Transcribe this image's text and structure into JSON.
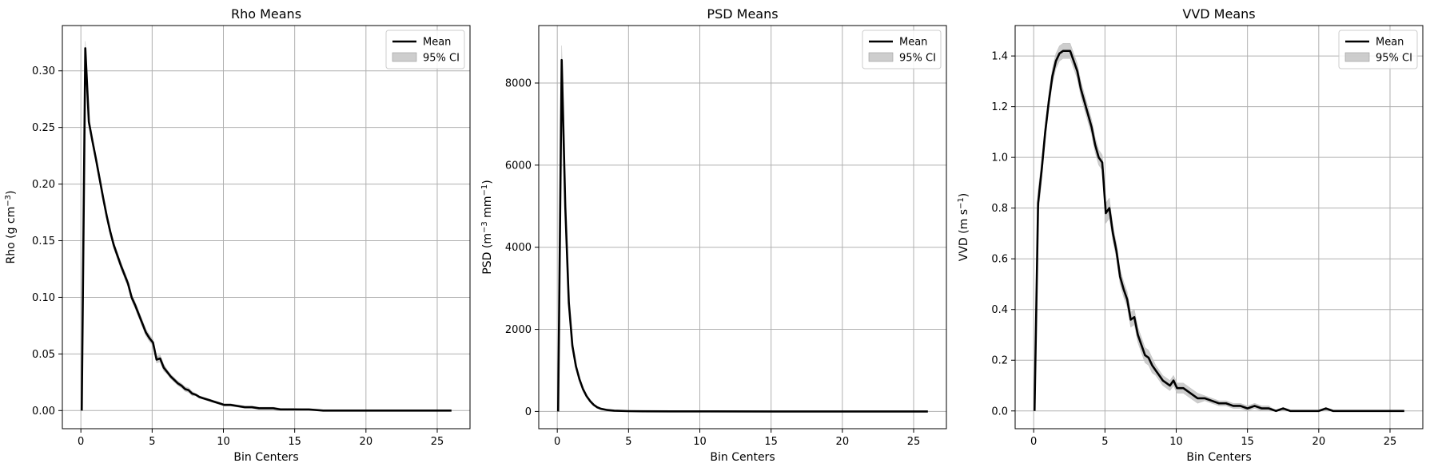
{
  "chart_data": [
    {
      "type": "line",
      "title": "Rho Means",
      "xlabel": "Bin Centers",
      "ylabel_parts": [
        "Rho (g cm",
        "−3",
        ")"
      ],
      "xlim": [
        -1.3,
        27.3
      ],
      "ylim": [
        -0.016,
        0.34
      ],
      "xticks": [
        0,
        5,
        10,
        15,
        20,
        25
      ],
      "xtick_labels": [
        "0",
        "5",
        "10",
        "15",
        "20",
        "25"
      ],
      "yticks": [
        0.0,
        0.05,
        0.1,
        0.15,
        0.2,
        0.25,
        0.3
      ],
      "ytick_labels": [
        "0.00",
        "0.05",
        "0.10",
        "0.15",
        "0.20",
        "0.25",
        "0.30"
      ],
      "grid": true,
      "legend_position": "top-right",
      "legend": [
        "Mean",
        "95% CI"
      ],
      "series": [
        {
          "name": "Mean",
          "x": [
            0.06,
            0.31,
            0.56,
            0.81,
            1.06,
            1.31,
            1.56,
            1.81,
            2.06,
            2.31,
            2.56,
            2.81,
            3.06,
            3.31,
            3.56,
            3.81,
            4.06,
            4.31,
            4.56,
            4.81,
            5.06,
            5.31,
            5.56,
            5.81,
            6.06,
            6.31,
            6.56,
            6.81,
            7.06,
            7.31,
            7.56,
            7.81,
            8.06,
            8.31,
            8.56,
            8.81,
            9.06,
            9.31,
            9.56,
            9.81,
            10.06,
            10.5,
            11.0,
            11.5,
            12.0,
            12.5,
            13.0,
            13.5,
            14.0,
            14.5,
            15.0,
            16.0,
            17.0,
            18.0,
            19.0,
            20.0,
            21.0,
            22.0,
            23.0,
            24.0,
            25.0,
            26.0
          ],
          "y": [
            0.0,
            0.32,
            0.255,
            0.238,
            0.222,
            0.205,
            0.188,
            0.172,
            0.158,
            0.146,
            0.137,
            0.128,
            0.12,
            0.112,
            0.1,
            0.093,
            0.085,
            0.077,
            0.069,
            0.064,
            0.06,
            0.045,
            0.046,
            0.038,
            0.034,
            0.03,
            0.027,
            0.024,
            0.022,
            0.019,
            0.018,
            0.015,
            0.014,
            0.012,
            0.011,
            0.01,
            0.009,
            0.008,
            0.007,
            0.006,
            0.005,
            0.005,
            0.004,
            0.003,
            0.003,
            0.002,
            0.002,
            0.002,
            0.001,
            0.001,
            0.001,
            0.001,
            0.0,
            0.0,
            0.0,
            0.0,
            0.0,
            0.0,
            0.0,
            0.0,
            0.0,
            0.0
          ]
        }
      ],
      "ci_half_width": [
        0.0,
        0.006,
        0.004,
        0.003,
        0.003,
        0.003,
        0.003,
        0.003,
        0.003,
        0.003,
        0.003,
        0.003,
        0.003,
        0.003,
        0.003,
        0.003,
        0.003,
        0.003,
        0.003,
        0.003,
        0.003,
        0.003,
        0.003,
        0.003,
        0.002,
        0.002,
        0.002,
        0.002,
        0.002,
        0.002,
        0.002,
        0.002,
        0.001,
        0.001,
        0.001,
        0.001,
        0.001,
        0.001,
        0.001,
        0.001,
        0.001,
        0.001,
        0.001,
        0.001,
        0.001,
        0.001,
        0.001,
        0.001,
        0.001,
        0.001,
        0.001,
        0.0,
        0.0,
        0.0,
        0.0,
        0.0,
        0.0,
        0.0,
        0.0,
        0.0,
        0.0,
        0.0
      ]
    },
    {
      "type": "line",
      "title": "PSD Means",
      "xlabel": "Bin Centers",
      "ylabel_parts": [
        "PSD (m",
        "−3",
        " mm",
        "−1",
        ")"
      ],
      "xlim": [
        -1.3,
        27.3
      ],
      "ylim": [
        -420,
        9400
      ],
      "xticks": [
        0,
        5,
        10,
        15,
        20,
        25
      ],
      "xtick_labels": [
        "0",
        "5",
        "10",
        "15",
        "20",
        "25"
      ],
      "yticks": [
        0,
        2000,
        4000,
        6000,
        8000
      ],
      "ytick_labels": [
        "0",
        "2000",
        "4000",
        "6000",
        "8000"
      ],
      "grid": true,
      "legend_position": "top-right",
      "legend": [
        "Mean",
        "95% CI"
      ],
      "series": [
        {
          "name": "Mean",
          "x": [
            0.06,
            0.31,
            0.56,
            0.81,
            1.06,
            1.31,
            1.56,
            1.81,
            2.06,
            2.31,
            2.56,
            2.81,
            3.06,
            3.5,
            4.0,
            5.0,
            6.0,
            8.0,
            10.0,
            15.0,
            20.0,
            26.0
          ],
          "y": [
            0,
            8560,
            5000,
            2650,
            1600,
            1100,
            780,
            540,
            370,
            250,
            160,
            100,
            65,
            35,
            18,
            8,
            4,
            2,
            1,
            0,
            0,
            0
          ]
        }
      ],
      "ci_half_width": [
        0,
        350,
        200,
        110,
        70,
        50,
        35,
        25,
        18,
        12,
        8,
        6,
        4,
        3,
        2,
        1,
        1,
        0,
        0,
        0,
        0,
        0
      ]
    },
    {
      "type": "line",
      "title": "VVD Means",
      "xlabel": "Bin Centers",
      "ylabel_parts": [
        "VVD (m s",
        "−1",
        ")"
      ],
      "xlim": [
        -1.3,
        27.3
      ],
      "ylim": [
        -0.07,
        1.52
      ],
      "xticks": [
        0,
        5,
        10,
        15,
        20,
        25
      ],
      "xtick_labels": [
        "0",
        "5",
        "10",
        "15",
        "20",
        "25"
      ],
      "yticks": [
        0.0,
        0.2,
        0.4,
        0.6,
        0.8,
        1.0,
        1.2,
        1.4
      ],
      "ytick_labels": [
        "0.0",
        "0.2",
        "0.4",
        "0.6",
        "0.8",
        "1.0",
        "1.2",
        "1.4"
      ],
      "grid": true,
      "legend_position": "top-right",
      "legend": [
        "Mean",
        "95% CI"
      ],
      "series": [
        {
          "name": "Mean",
          "x": [
            0.06,
            0.31,
            0.56,
            0.81,
            1.06,
            1.31,
            1.56,
            1.81,
            2.06,
            2.31,
            2.56,
            2.81,
            3.06,
            3.31,
            3.56,
            3.81,
            4.06,
            4.31,
            4.56,
            4.81,
            5.06,
            5.31,
            5.56,
            5.81,
            6.06,
            6.31,
            6.56,
            6.81,
            7.06,
            7.31,
            7.56,
            7.81,
            8.06,
            8.31,
            8.56,
            8.81,
            9.06,
            9.31,
            9.56,
            9.81,
            10.06,
            10.5,
            11.0,
            11.5,
            12.0,
            12.5,
            13.0,
            13.5,
            14.0,
            14.5,
            15.0,
            15.5,
            16.0,
            16.5,
            17.0,
            17.5,
            18.0,
            18.5,
            19.0,
            19.5,
            20.0,
            20.5,
            21.0,
            22.0,
            23.0,
            24.0,
            25.0,
            26.0
          ],
          "y": [
            0.0,
            0.82,
            0.95,
            1.1,
            1.22,
            1.32,
            1.38,
            1.41,
            1.42,
            1.42,
            1.42,
            1.38,
            1.34,
            1.27,
            1.22,
            1.17,
            1.12,
            1.05,
            1.0,
            0.98,
            0.78,
            0.8,
            0.7,
            0.63,
            0.53,
            0.48,
            0.44,
            0.36,
            0.37,
            0.3,
            0.26,
            0.22,
            0.21,
            0.18,
            0.16,
            0.14,
            0.12,
            0.11,
            0.1,
            0.12,
            0.09,
            0.09,
            0.07,
            0.05,
            0.05,
            0.04,
            0.03,
            0.03,
            0.02,
            0.02,
            0.01,
            0.02,
            0.01,
            0.01,
            0.0,
            0.01,
            0.0,
            0.0,
            0.0,
            0.0,
            0.0,
            0.01,
            0.0,
            0.0,
            0.0,
            0.0,
            0.0,
            0.0
          ]
        }
      ],
      "ci_half_width": [
        0.0,
        0.05,
        0.04,
        0.03,
        0.03,
        0.03,
        0.03,
        0.03,
        0.03,
        0.03,
        0.03,
        0.03,
        0.03,
        0.03,
        0.03,
        0.03,
        0.03,
        0.03,
        0.03,
        0.03,
        0.04,
        0.04,
        0.03,
        0.03,
        0.03,
        0.03,
        0.03,
        0.03,
        0.03,
        0.03,
        0.03,
        0.03,
        0.03,
        0.03,
        0.02,
        0.02,
        0.02,
        0.02,
        0.02,
        0.02,
        0.02,
        0.02,
        0.02,
        0.02,
        0.01,
        0.01,
        0.01,
        0.01,
        0.01,
        0.01,
        0.01,
        0.01,
        0.01,
        0.01,
        0.0,
        0.0,
        0.0,
        0.0,
        0.0,
        0.0,
        0.0,
        0.0,
        0.0,
        0.0,
        0.0,
        0.0,
        0.0,
        0.0
      ]
    }
  ],
  "colors": {
    "line": "#000000",
    "ci_fill": "#c0c0c0",
    "grid": "#b0b0b0",
    "axes": "#000000"
  }
}
